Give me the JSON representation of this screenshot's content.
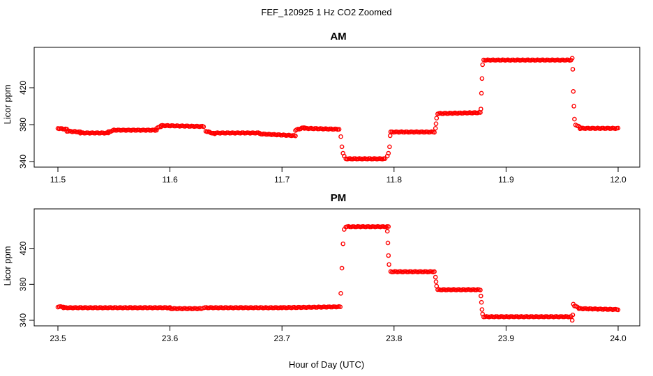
{
  "figure": {
    "title": "FEF_120925  1 Hz CO2 Zoomed",
    "xlabel": "Hour of Day (UTC)"
  },
  "style": {
    "point_color": "#ff0000",
    "axis_color": "#000000",
    "background": "#ffffff"
  },
  "chart_data": [
    {
      "type": "scatter",
      "title": "AM",
      "xlabel": "Hour of Day (UTC)",
      "ylabel": "Licor ppm",
      "xlim": [
        11.5,
        12.0
      ],
      "ylim": [
        340,
        460
      ],
      "xticks": [
        "11.5",
        "11.6",
        "11.7",
        "11.8",
        "11.9",
        "12.0"
      ],
      "yticks": [
        "340",
        "380",
        "420"
      ],
      "grid": false,
      "segments": [
        {
          "x": [
            11.5,
            11.508
          ],
          "y": [
            376,
            375
          ]
        },
        {
          "x": [
            11.508,
            11.52
          ],
          "y": [
            373,
            372
          ]
        },
        {
          "x": [
            11.52,
            11.545
          ],
          "y": [
            371,
            371
          ]
        },
        {
          "x": [
            11.545,
            11.55
          ],
          "y": [
            372,
            374
          ]
        },
        {
          "x": [
            11.55,
            11.588
          ],
          "y": [
            374,
            374
          ]
        },
        {
          "x": [
            11.588,
            11.592
          ],
          "y": [
            376,
            378
          ]
        },
        {
          "x": [
            11.592,
            11.63
          ],
          "y": [
            379,
            378
          ]
        },
        {
          "x": [
            11.632,
            11.64
          ],
          "y": [
            373,
            370
          ]
        },
        {
          "x": [
            11.64,
            11.68
          ],
          "y": [
            371,
            371
          ]
        },
        {
          "x": [
            11.68,
            11.712
          ],
          "y": [
            370,
            368
          ]
        },
        {
          "x": [
            11.712,
            11.72
          ],
          "y": [
            374,
            377
          ]
        },
        {
          "x": [
            11.72,
            11.751
          ],
          "y": [
            376,
            375
          ]
        },
        {
          "x": [
            11.757,
            11.792
          ],
          "y": [
            343,
            343
          ]
        },
        {
          "x": [
            11.797,
            11.836
          ],
          "y": [
            372,
            372
          ]
        },
        {
          "x": [
            11.839,
            11.877
          ],
          "y": [
            392,
            393
          ]
        },
        {
          "x": [
            11.88,
            11.958
          ],
          "y": [
            450,
            450
          ]
        },
        {
          "x": [
            11.962,
            11.966
          ],
          "y": [
            380,
            377
          ]
        },
        {
          "x": [
            11.966,
            12.0
          ],
          "y": [
            376,
            376
          ]
        }
      ],
      "transitions": [
        {
          "x": 11.7525,
          "y": 367
        },
        {
          "x": 11.7535,
          "y": 356
        },
        {
          "x": 11.7545,
          "y": 349
        },
        {
          "x": 11.7555,
          "y": 346
        },
        {
          "x": 11.794,
          "y": 346
        },
        {
          "x": 11.795,
          "y": 349
        },
        {
          "x": 11.796,
          "y": 356
        },
        {
          "x": 11.7965,
          "y": 368
        },
        {
          "x": 11.837,
          "y": 376
        },
        {
          "x": 11.8375,
          "y": 381
        },
        {
          "x": 11.838,
          "y": 387
        },
        {
          "x": 11.8775,
          "y": 397
        },
        {
          "x": 11.878,
          "y": 414
        },
        {
          "x": 11.8785,
          "y": 430
        },
        {
          "x": 11.879,
          "y": 445
        },
        {
          "x": 11.959,
          "y": 452
        },
        {
          "x": 11.9595,
          "y": 440
        },
        {
          "x": 11.96,
          "y": 416
        },
        {
          "x": 11.9605,
          "y": 400
        },
        {
          "x": 11.961,
          "y": 386
        }
      ]
    },
    {
      "type": "scatter",
      "title": "PM",
      "xlabel": "Hour of Day (UTC)",
      "ylabel": "Licor ppm",
      "xlim": [
        23.5,
        24.0
      ],
      "ylim": [
        340,
        460
      ],
      "xticks": [
        "23.5",
        "23.6",
        "23.7",
        "23.8",
        "23.9",
        "24.0"
      ],
      "yticks": [
        "340",
        "380",
        "420"
      ],
      "grid": false,
      "segments": [
        {
          "x": [
            23.5,
            23.505
          ],
          "y": [
            355,
            355
          ]
        },
        {
          "x": [
            23.505,
            23.6
          ],
          "y": [
            354,
            354
          ]
        },
        {
          "x": [
            23.6,
            23.628
          ],
          "y": [
            353,
            353
          ]
        },
        {
          "x": [
            23.63,
            23.7
          ],
          "y": [
            354,
            354
          ]
        },
        {
          "x": [
            23.7,
            23.752
          ],
          "y": [
            354,
            355
          ]
        },
        {
          "x": [
            23.757,
            23.795
          ],
          "y": [
            444,
            444
          ]
        },
        {
          "x": [
            23.797,
            23.836
          ],
          "y": [
            394,
            394
          ]
        },
        {
          "x": [
            23.839,
            23.877
          ],
          "y": [
            374,
            374
          ]
        },
        {
          "x": [
            23.88,
            23.958
          ],
          "y": [
            344,
            344
          ]
        },
        {
          "x": [
            23.961,
            23.965
          ],
          "y": [
            356,
            354
          ]
        },
        {
          "x": [
            23.965,
            24.0
          ],
          "y": [
            353,
            352
          ]
        }
      ],
      "transitions": [
        {
          "x": 23.7525,
          "y": 370
        },
        {
          "x": 23.7535,
          "y": 398
        },
        {
          "x": 23.7545,
          "y": 425
        },
        {
          "x": 23.7555,
          "y": 441
        },
        {
          "x": 23.794,
          "y": 439
        },
        {
          "x": 23.7945,
          "y": 426
        },
        {
          "x": 23.795,
          "y": 412
        },
        {
          "x": 23.7955,
          "y": 402
        },
        {
          "x": 23.837,
          "y": 388
        },
        {
          "x": 23.8375,
          "y": 383
        },
        {
          "x": 23.838,
          "y": 378
        },
        {
          "x": 23.8775,
          "y": 367
        },
        {
          "x": 23.878,
          "y": 360
        },
        {
          "x": 23.8785,
          "y": 352
        },
        {
          "x": 23.879,
          "y": 347
        },
        {
          "x": 23.959,
          "y": 340
        },
        {
          "x": 23.9595,
          "y": 346
        },
        {
          "x": 23.96,
          "y": 358
        }
      ]
    }
  ]
}
